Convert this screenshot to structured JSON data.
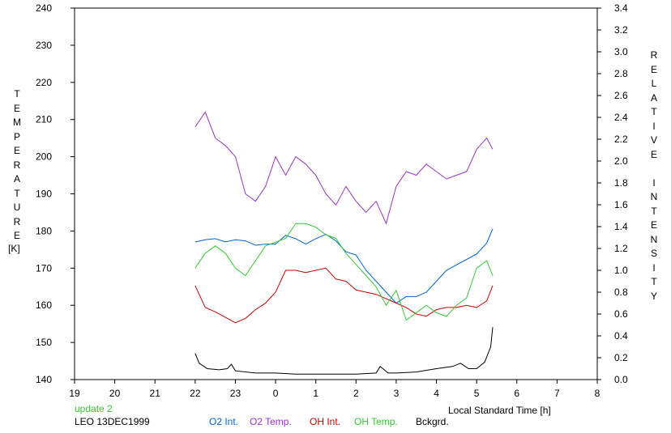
{
  "chart_data": {
    "type": "line",
    "xlabel": "Local Standard Time [h]",
    "ylabel_left": [
      "T",
      "E",
      "M",
      "P",
      "E",
      "R",
      "A",
      "T",
      "U",
      "R",
      "E"
    ],
    "ylabel_left_unit": "[K]",
    "ylabel_right": [
      "R",
      "E",
      "L",
      "A",
      "T",
      "I",
      "V",
      "E",
      " ",
      "I",
      "N",
      "T",
      "E",
      "N",
      "S",
      "I",
      "T",
      "Y"
    ],
    "x_ticks": [
      "19",
      "20",
      "21",
      "22",
      "23",
      "0",
      "1",
      "2",
      "3",
      "4",
      "5",
      "6",
      "7",
      "8"
    ],
    "x_range": [
      19,
      32
    ],
    "y_left_ticks": [
      "140",
      "150",
      "160",
      "170",
      "180",
      "190",
      "200",
      "210",
      "220",
      "230",
      "240"
    ],
    "y_left_range": [
      140,
      240
    ],
    "y_right_ticks": [
      "0.0",
      "0.2",
      "0.4",
      "0.6",
      "0.8",
      "1.0",
      "1.2",
      "1.4",
      "1.6",
      "1.8",
      "2.0",
      "2.2",
      "2.4",
      "2.6",
      "2.8",
      "3.0",
      "3.2",
      "3.4"
    ],
    "y_right_range": [
      0,
      3.4
    ],
    "series": [
      {
        "name": "O2 Int.",
        "axis": "right",
        "color": "#0064d2",
        "x": [
          22.0,
          22.25,
          22.5,
          22.75,
          23.0,
          23.25,
          23.5,
          23.75,
          24.0,
          24.25,
          24.5,
          24.75,
          25.0,
          25.25,
          25.5,
          25.75,
          26.0,
          26.25,
          26.5,
          26.75,
          27.0,
          27.25,
          27.5,
          27.75,
          28.0,
          28.25,
          28.5,
          28.75,
          29.0,
          29.25,
          29.4
        ],
        "y": [
          1.26,
          1.28,
          1.29,
          1.26,
          1.28,
          1.27,
          1.23,
          1.24,
          1.24,
          1.32,
          1.29,
          1.24,
          1.29,
          1.33,
          1.27,
          1.17,
          1.14,
          1.0,
          0.9,
          0.8,
          0.7,
          0.76,
          0.76,
          0.8,
          0.9,
          1.0,
          1.05,
          1.1,
          1.15,
          1.25,
          1.38
        ]
      },
      {
        "name": "O2 Temp.",
        "axis": "left",
        "color": "#9632c8",
        "x": [
          22.0,
          22.25,
          22.5,
          22.75,
          23.0,
          23.25,
          23.5,
          23.75,
          24.0,
          24.25,
          24.5,
          24.75,
          25.0,
          25.25,
          25.5,
          25.75,
          26.0,
          26.25,
          26.5,
          26.75,
          27.0,
          27.25,
          27.5,
          27.75,
          28.0,
          28.25,
          28.5,
          28.75,
          29.0,
          29.25,
          29.4
        ],
        "y": [
          208,
          212,
          205,
          203,
          200,
          190,
          188,
          192,
          200,
          195,
          200,
          198,
          195,
          190,
          187,
          192,
          188,
          185,
          188,
          182,
          192,
          196,
          195,
          198,
          196,
          194,
          195,
          196,
          202,
          205,
          202
        ]
      },
      {
        "name": "OH Int.",
        "axis": "right",
        "color": "#c80000",
        "x": [
          22.0,
          22.25,
          22.5,
          22.75,
          23.0,
          23.25,
          23.5,
          23.75,
          24.0,
          24.25,
          24.5,
          24.75,
          25.0,
          25.25,
          25.5,
          25.75,
          26.0,
          26.25,
          26.5,
          26.75,
          27.0,
          27.25,
          27.5,
          27.75,
          28.0,
          28.25,
          28.5,
          28.75,
          29.0,
          29.25,
          29.4
        ],
        "y": [
          0.86,
          0.66,
          0.62,
          0.57,
          0.52,
          0.56,
          0.64,
          0.7,
          0.8,
          1.0,
          1.0,
          0.98,
          1.0,
          1.02,
          0.92,
          0.9,
          0.82,
          0.8,
          0.78,
          0.74,
          0.7,
          0.66,
          0.6,
          0.58,
          0.64,
          0.66,
          0.66,
          0.68,
          0.66,
          0.72,
          0.86
        ]
      },
      {
        "name": "OH Temp.",
        "axis": "left",
        "color": "#32c832",
        "x": [
          22.0,
          22.25,
          22.5,
          22.75,
          23.0,
          23.25,
          23.5,
          23.75,
          24.0,
          24.25,
          24.5,
          24.75,
          25.0,
          25.25,
          25.5,
          25.75,
          26.0,
          26.25,
          26.5,
          26.75,
          27.0,
          27.25,
          27.5,
          27.75,
          28.0,
          28.25,
          28.5,
          28.75,
          29.0,
          29.25,
          29.4
        ],
        "y": [
          170,
          174,
          176,
          174,
          170,
          168,
          172,
          176,
          177,
          178,
          182,
          182,
          181,
          179,
          178,
          174,
          171,
          168,
          165,
          160,
          164,
          156,
          158,
          160,
          158,
          157,
          160,
          162,
          170,
          172,
          168
        ]
      },
      {
        "name": "Bckgrd.",
        "axis": "right",
        "color": "#000000",
        "x": [
          22.0,
          22.1,
          22.3,
          22.6,
          22.8,
          22.9,
          23.0,
          23.5,
          24.0,
          24.5,
          25.0,
          25.5,
          26.0,
          26.5,
          26.6,
          26.8,
          27.0,
          27.5,
          28.0,
          28.4,
          28.6,
          28.8,
          29.0,
          29.2,
          29.35,
          29.4
        ],
        "y": [
          0.24,
          0.15,
          0.1,
          0.09,
          0.1,
          0.14,
          0.08,
          0.06,
          0.06,
          0.05,
          0.05,
          0.05,
          0.05,
          0.06,
          0.12,
          0.06,
          0.06,
          0.07,
          0.1,
          0.12,
          0.15,
          0.1,
          0.1,
          0.16,
          0.3,
          0.48
        ]
      }
    ]
  },
  "footer": {
    "update_text": "update 2",
    "update_color": "#32c832",
    "station_text": "LEO 13DEC1999",
    "legend": [
      {
        "label": "O2 Int.",
        "color": "#0064d2"
      },
      {
        "label": "O2 Temp.",
        "color": "#9632c8"
      },
      {
        "label": "OH Int.",
        "color": "#c80000"
      },
      {
        "label": "OH Temp.",
        "color": "#32c832"
      },
      {
        "label": "Bckgrd.",
        "color": "#000000"
      }
    ]
  }
}
